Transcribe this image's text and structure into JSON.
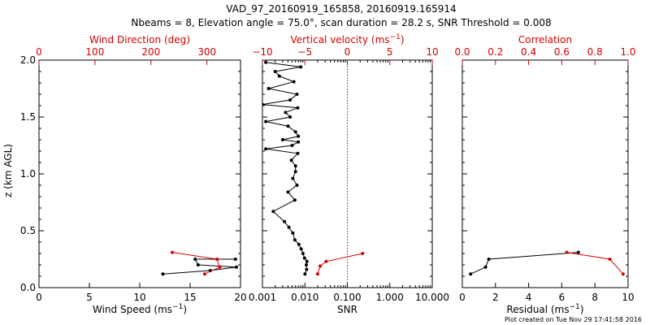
{
  "title_line1": "VAD_97_20160919_165858, 20160919.165914",
  "title_line2": "Nbeams = 8, Elevation angle = 75.0°, scan duration = 28.2 s, SNR Threshold = 0.008",
  "footer": "Plot created on Tue Nov 29 17:41:58 2016",
  "colors": {
    "primary": "#000000",
    "secondary": "#d40000"
  },
  "chart_data": [
    {
      "type": "line",
      "panel": "wind",
      "ylabel": "z (km AGL)",
      "ylim": [
        0,
        2.0
      ],
      "y_ticks": [
        "0.0",
        "0.5",
        "1.0",
        "1.5",
        "2.0"
      ],
      "x_bottom": {
        "label": "Wind Speed",
        "unit": "ms",
        "exp": "−1",
        "range": [
          0,
          20
        ],
        "ticks": [
          "0",
          "5",
          "10",
          "15",
          "20"
        ]
      },
      "x_top": {
        "label": "Wind Direction (deg)",
        "range": [
          0,
          360
        ],
        "ticks": [
          "0",
          "100",
          "200",
          "300"
        ]
      },
      "series": [
        {
          "axis": "bottom",
          "color": "#000000",
          "x": [
            12.3,
            17.0,
            19.6,
            15.8,
            15.5,
            19.5
          ],
          "y": [
            0.12,
            0.15,
            0.18,
            0.2,
            0.25,
            0.25
          ]
        },
        {
          "axis": "top",
          "color": "#d40000",
          "x": [
            296,
            323,
            318,
            238
          ],
          "y": [
            0.12,
            0.18,
            0.25,
            0.31
          ]
        }
      ]
    },
    {
      "type": "line",
      "panel": "snr",
      "x_bottom": {
        "label": "SNR",
        "scale": "log",
        "range": [
          0.001,
          10
        ],
        "ticks": [
          "0.001",
          "0.010",
          "0.100",
          "1.000",
          "10.000"
        ]
      },
      "x_top": {
        "label": "Vertical velocity",
        "unit": "ms",
        "exp": "−1",
        "range": [
          -10,
          10
        ],
        "ticks": [
          "−10",
          "−5",
          "0",
          "5",
          "10"
        ]
      },
      "reference_line": {
        "axis": "top",
        "value": 0,
        "style": "dotted",
        "color": "#d40000"
      },
      "series": [
        {
          "axis": "bottom",
          "color": "#000000",
          "x": [
            0.01,
            0.011,
            0.0108,
            0.0112,
            0.0098,
            0.009,
            0.0082,
            0.0072,
            0.0058,
            0.0052,
            0.0042,
            0.0033,
            0.0018,
            0.0058,
            0.004,
            0.0065,
            0.0052,
            0.006,
            0.006,
            0.0048,
            0.0068,
            0.0012,
            0.005,
            0.007,
            0.003,
            0.007,
            0.006,
            0.004,
            0.0012,
            0.0045,
            0.0035,
            0.0068,
            0.001,
            0.0045,
            0.0065,
            0.0014,
            0.0055,
            0.0025,
            0.002,
            0.008,
            0.0012
          ],
          "y": [
            0.12,
            0.16,
            0.2,
            0.23,
            0.26,
            0.3,
            0.34,
            0.38,
            0.42,
            0.48,
            0.53,
            0.58,
            0.67,
            0.77,
            0.84,
            0.9,
            0.96,
            1.02,
            1.07,
            1.12,
            1.18,
            1.22,
            1.25,
            1.28,
            1.3,
            1.33,
            1.37,
            1.42,
            1.46,
            1.5,
            1.54,
            1.58,
            1.61,
            1.65,
            1.7,
            1.75,
            1.81,
            1.86,
            1.9,
            1.94,
            1.98
          ]
        },
        {
          "axis": "top",
          "color": "#d40000",
          "x": [
            -3.5,
            -3.2,
            -2.5,
            1.8
          ],
          "y": [
            0.12,
            0.19,
            0.23,
            0.3
          ]
        }
      ]
    },
    {
      "type": "line",
      "panel": "residual",
      "x_bottom": {
        "label": "Residual",
        "unit": "ms",
        "exp": "−1",
        "range": [
          0,
          10
        ],
        "ticks": [
          "0",
          "2",
          "4",
          "6",
          "8",
          "10"
        ]
      },
      "x_top": {
        "label": "Correlation",
        "range": [
          0,
          1
        ],
        "ticks": [
          "0.0",
          "0.2",
          "0.4",
          "0.6",
          "0.8",
          "1.0"
        ]
      },
      "series": [
        {
          "axis": "bottom",
          "color": "#000000",
          "x": [
            0.5,
            1.4,
            1.6,
            7.0
          ],
          "y": [
            0.12,
            0.18,
            0.25,
            0.31
          ]
        },
        {
          "axis": "top",
          "color": "#d40000",
          "x": [
            0.97,
            0.89,
            0.63
          ],
          "y": [
            0.12,
            0.25,
            0.31
          ]
        }
      ]
    }
  ]
}
